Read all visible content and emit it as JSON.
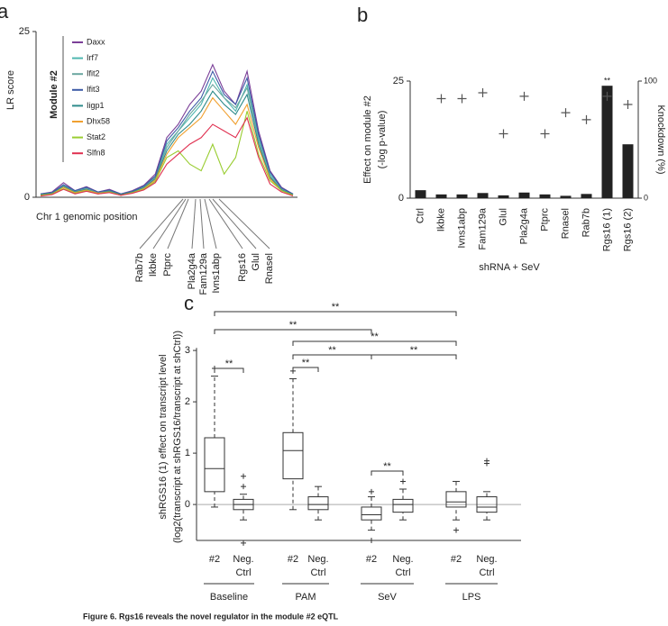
{
  "chart_data": [
    {
      "type": "line",
      "panel": "a",
      "ylabel": "LR score",
      "xlabel": "Chr 1 genomic position",
      "legend_title": "Module #2",
      "ylim": [
        0,
        25
      ],
      "yticks": [
        0,
        25
      ],
      "series": [
        {
          "name": "Daxx",
          "color": "#7b3f98",
          "values": [
            0.5,
            0.8,
            2.2,
            1,
            1.6,
            0.8,
            1.2,
            0.5,
            1,
            1.8,
            3.5,
            9,
            11,
            14,
            16,
            20,
            16,
            14,
            19,
            10,
            4,
            1.5,
            0.5
          ]
        },
        {
          "name": "Irf7",
          "color": "#4fb7b0",
          "values": [
            0.4,
            0.7,
            1.8,
            0.9,
            1.4,
            0.7,
            1,
            0.4,
            0.9,
            1.6,
            3,
            8,
            10,
            12,
            14,
            18,
            15,
            13,
            17,
            9,
            3.5,
            1.3,
            0.4
          ]
        },
        {
          "name": "Ifit2",
          "color": "#6aa7a0",
          "values": [
            0.4,
            0.6,
            1.7,
            0.8,
            1.3,
            0.7,
            1,
            0.4,
            0.8,
            1.5,
            3,
            7.5,
            10,
            12.5,
            14.5,
            17,
            15,
            13.5,
            16.5,
            8.5,
            3.2,
            1.2,
            0.4
          ]
        },
        {
          "name": "Ifit3",
          "color": "#3c5aa6",
          "values": [
            0.5,
            0.7,
            1.9,
            1,
            1.5,
            0.8,
            1.1,
            0.5,
            0.9,
            1.7,
            3.2,
            8.5,
            10.5,
            13,
            15,
            19,
            15.5,
            14,
            18,
            9.5,
            3.8,
            1.4,
            0.5
          ]
        },
        {
          "name": "Iigp1",
          "color": "#2e8b8b",
          "values": [
            0.4,
            0.6,
            1.6,
            0.8,
            1.2,
            0.6,
            0.9,
            0.4,
            0.8,
            1.4,
            2.8,
            7,
            9.5,
            11,
            13,
            16,
            14,
            12.5,
            15.5,
            8,
            3,
            1.1,
            0.4
          ]
        },
        {
          "name": "Dhx58",
          "color": "#f0a030",
          "values": [
            0.3,
            0.5,
            1.5,
            0.7,
            1.1,
            0.6,
            0.8,
            0.3,
            0.7,
            1.3,
            2.6,
            6.5,
            9,
            10.5,
            12,
            15,
            13,
            11,
            14,
            7.5,
            2.8,
            1,
            0.3
          ]
        },
        {
          "name": "Stat2",
          "color": "#9acd32",
          "values": [
            0.3,
            0.5,
            1.3,
            0.6,
            1,
            0.5,
            0.8,
            0.3,
            0.7,
            1.2,
            2.4,
            6,
            7,
            5,
            4,
            8,
            3.5,
            6,
            13,
            6.5,
            2.5,
            1,
            0.3
          ]
        },
        {
          "name": "Slfn8",
          "color": "#e03050",
          "values": [
            0.2,
            0.4,
            1.2,
            0.5,
            0.9,
            0.5,
            0.7,
            0.3,
            0.6,
            1.1,
            2.2,
            5,
            6.5,
            8,
            9,
            11,
            10,
            9,
            12,
            6,
            2,
            0.8,
            0.2
          ]
        }
      ],
      "genes": [
        "Rab7b",
        "Ikbke",
        "Ptprc",
        "Pla2g4a",
        "Fam129a",
        "Ivns1abp",
        "Rgs16",
        "Glul",
        "Rnasel"
      ]
    },
    {
      "type": "bar",
      "panel": "b",
      "ylabel": [
        "Effect on module #2",
        "(-log p-value)"
      ],
      "y2label": "Knockdown (%)",
      "xlabel": "shRNA + SeV",
      "categories": [
        "Ctrl",
        "Ikbke",
        "Ivns1abp",
        "Fam129a",
        "Glul",
        "Pla2g4a",
        "Ptprc",
        "Rnasel",
        "Rab7b",
        "Rgs16 (1)",
        "Rgs16 (2)"
      ],
      "ylim": [
        0,
        25
      ],
      "yticks": [
        0,
        25
      ],
      "y2lim": [
        0,
        100
      ],
      "y2ticks": [
        0,
        100
      ],
      "series": [
        {
          "name": "Effect on module #2",
          "color": "#222222",
          "values": [
            1.7,
            0.8,
            0.8,
            1.1,
            0.6,
            1.2,
            0.8,
            0.5,
            0.9,
            24,
            11.5
          ]
        },
        {
          "name": "Knockdown",
          "color": "#555555",
          "axis": "y2",
          "marker": "+",
          "values": [
            null,
            85,
            85,
            90,
            55,
            87,
            55,
            73,
            67,
            87,
            80
          ]
        }
      ],
      "annotations": [
        {
          "text": "**",
          "category": 9
        }
      ]
    },
    {
      "type": "box",
      "panel": "c",
      "ylabel": [
        "shRGS16 (1)  effect on transcript level",
        "(log2(transcript at shRGS16/transcript at shCtrl))"
      ],
      "ylim": [
        -0.7,
        3.05
      ],
      "yticks": [
        0,
        1,
        2,
        3
      ],
      "groups": [
        {
          "name": "Baseline",
          "boxes": [
            {
              "label": [
                "#2"
              ],
              "whisker_low": -0.05,
              "q1": 0.25,
              "median": 0.7,
              "q3": 1.3,
              "whisker_high": 2.5,
              "outliers": [
                2.65
              ]
            },
            {
              "label": [
                "Neg.",
                "Ctrl"
              ],
              "whisker_low": -0.3,
              "q1": -0.1,
              "median": 0,
              "q3": 0.1,
              "whisker_high": 0.2,
              "outliers": [
                0.55,
                0.35,
                -0.75
              ]
            }
          ]
        },
        {
          "name": "PAM",
          "boxes": [
            {
              "label": [
                "#2"
              ],
              "whisker_low": -0.1,
              "q1": 0.5,
              "median": 1.05,
              "q3": 1.4,
              "whisker_high": 2.45,
              "outliers": [
                2.6
              ]
            },
            {
              "label": [
                "Neg.",
                "Ctrl"
              ],
              "whisker_low": -0.3,
              "q1": -0.1,
              "median": 0,
              "q3": 0.15,
              "whisker_high": 0.35,
              "outliers": []
            }
          ]
        },
        {
          "name": "SeV",
          "boxes": [
            {
              "label": [
                "#2"
              ],
              "whisker_low": -0.5,
              "q1": -0.3,
              "median": -0.2,
              "q3": -0.05,
              "whisker_high": 0.15,
              "outliers": [
                0.25,
                -0.7
              ]
            },
            {
              "label": [
                "Neg.",
                "Ctrl"
              ],
              "whisker_low": -0.3,
              "q1": -0.15,
              "median": 0,
              "q3": 0.1,
              "whisker_high": 0.3,
              "outliers": [
                0.45
              ]
            }
          ]
        },
        {
          "name": "LPS",
          "boxes": [
            {
              "label": [
                "#2"
              ],
              "whisker_low": -0.3,
              "q1": -0.05,
              "median": 0.05,
              "q3": 0.25,
              "whisker_high": 0.45,
              "outliers": [
                -0.5
              ]
            },
            {
              "label": [
                "Neg.",
                "Ctrl"
              ],
              "whisker_low": -0.3,
              "q1": -0.15,
              "median": -0.05,
              "q3": 0.15,
              "whisker_high": 0.25,
              "outliers": [
                0.85,
                0.8
              ]
            }
          ]
        }
      ],
      "significance": [
        "**",
        "**",
        "**",
        "**",
        "**",
        "**",
        "**",
        "**"
      ]
    }
  ],
  "caption": "Figure 6. Rgs16 reveals the novel regulator in the module #2 eQTL"
}
